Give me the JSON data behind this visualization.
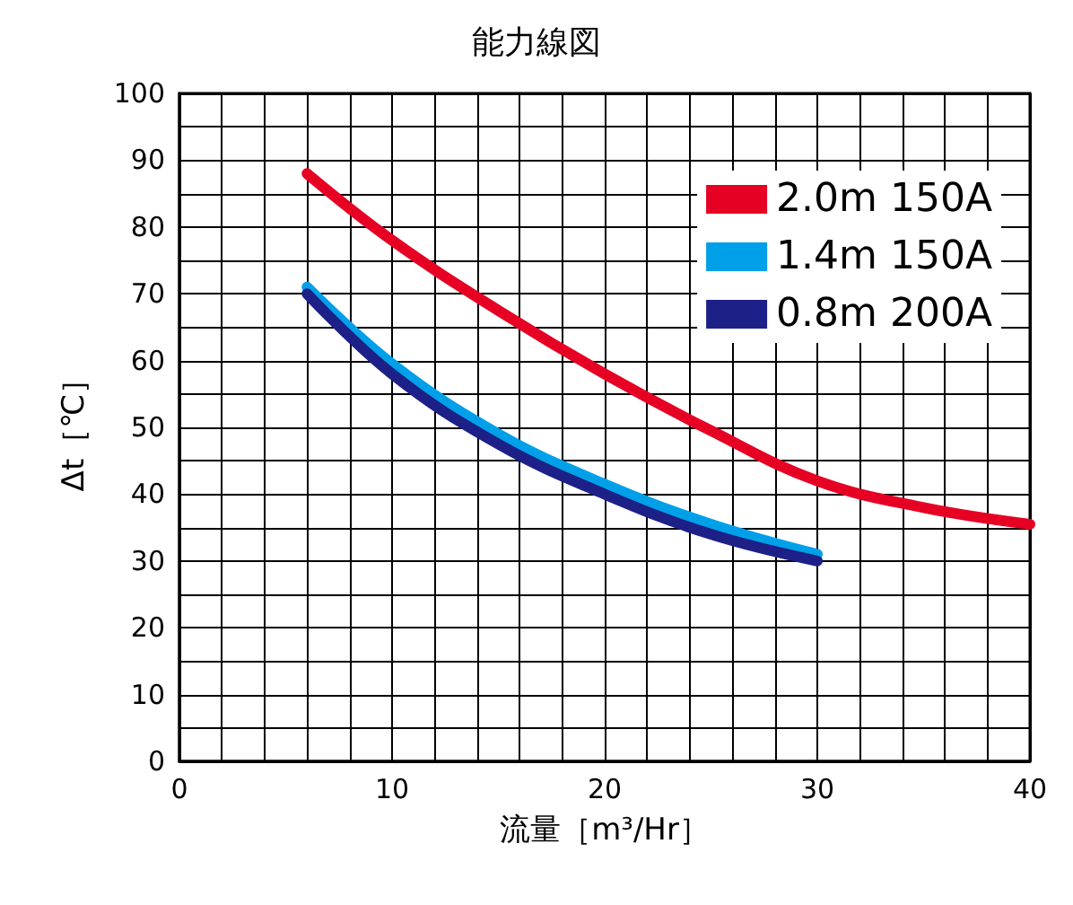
{
  "chart_data": {
    "type": "line",
    "title": "能力線図",
    "xlabel": "流量［m³/Hr］",
    "ylabel": "Δt［℃］",
    "xlim": [
      0,
      40
    ],
    "xticks": [
      0,
      {
        "value": 2,
        "label": null
      },
      {
        "value": 4,
        "label": null
      },
      {
        "value": 6,
        "label": null
      },
      {
        "value": 8,
        "label": null
      },
      10,
      {
        "value": 12,
        "label": null
      },
      {
        "value": 14,
        "label": null
      },
      {
        "value": 16,
        "label": null
      },
      {
        "value": 18,
        "label": null
      },
      20,
      {
        "value": 22,
        "label": null
      },
      {
        "value": 24,
        "label": null
      },
      {
        "value": 26,
        "label": null
      },
      {
        "value": 28,
        "label": null
      },
      30,
      {
        "value": 32,
        "label": null
      },
      {
        "value": 34,
        "label": null
      },
      {
        "value": 36,
        "label": null
      },
      {
        "value": 38,
        "label": null
      },
      40
    ],
    "ylim": [
      0,
      100
    ],
    "yticks": [
      0,
      {
        "value": 5,
        "label": null
      },
      10,
      {
        "value": 15,
        "label": null
      },
      20,
      {
        "value": 25,
        "label": null
      },
      30,
      {
        "value": 35,
        "label": null
      },
      40,
      {
        "value": 45,
        "label": null
      },
      50,
      {
        "value": 55,
        "label": null
      },
      60,
      {
        "value": 65,
        "label": null
      },
      70,
      {
        "value": 75,
        "label": null
      },
      80,
      {
        "value": 85,
        "label": null
      },
      90,
      {
        "value": 95,
        "label": null
      },
      100
    ],
    "grid": true,
    "legend": "top right",
    "marker": "none",
    "line_style": "solid",
    "series": [
      {
        "name": "2.0m 150A",
        "color": "#e60023",
        "x": [
          6,
          10,
          15,
          20,
          25,
          30,
          35,
          40
        ],
        "values": [
          88,
          78,
          67.5,
          58,
          49.5,
          42,
          38,
          35.5
        ]
      },
      {
        "name": "1.4m 150A",
        "color": "#00a0e9",
        "x": [
          6,
          10,
          15,
          20,
          25,
          30
        ],
        "values": [
          71,
          59.5,
          49,
          41.5,
          35.5,
          31
        ]
      },
      {
        "name": "0.8m 200A",
        "color": "#1d2087",
        "x": [
          6,
          10,
          15,
          20,
          25,
          30
        ],
        "values": [
          70,
          58,
          47.5,
          40,
          34,
          30
        ]
      }
    ]
  }
}
